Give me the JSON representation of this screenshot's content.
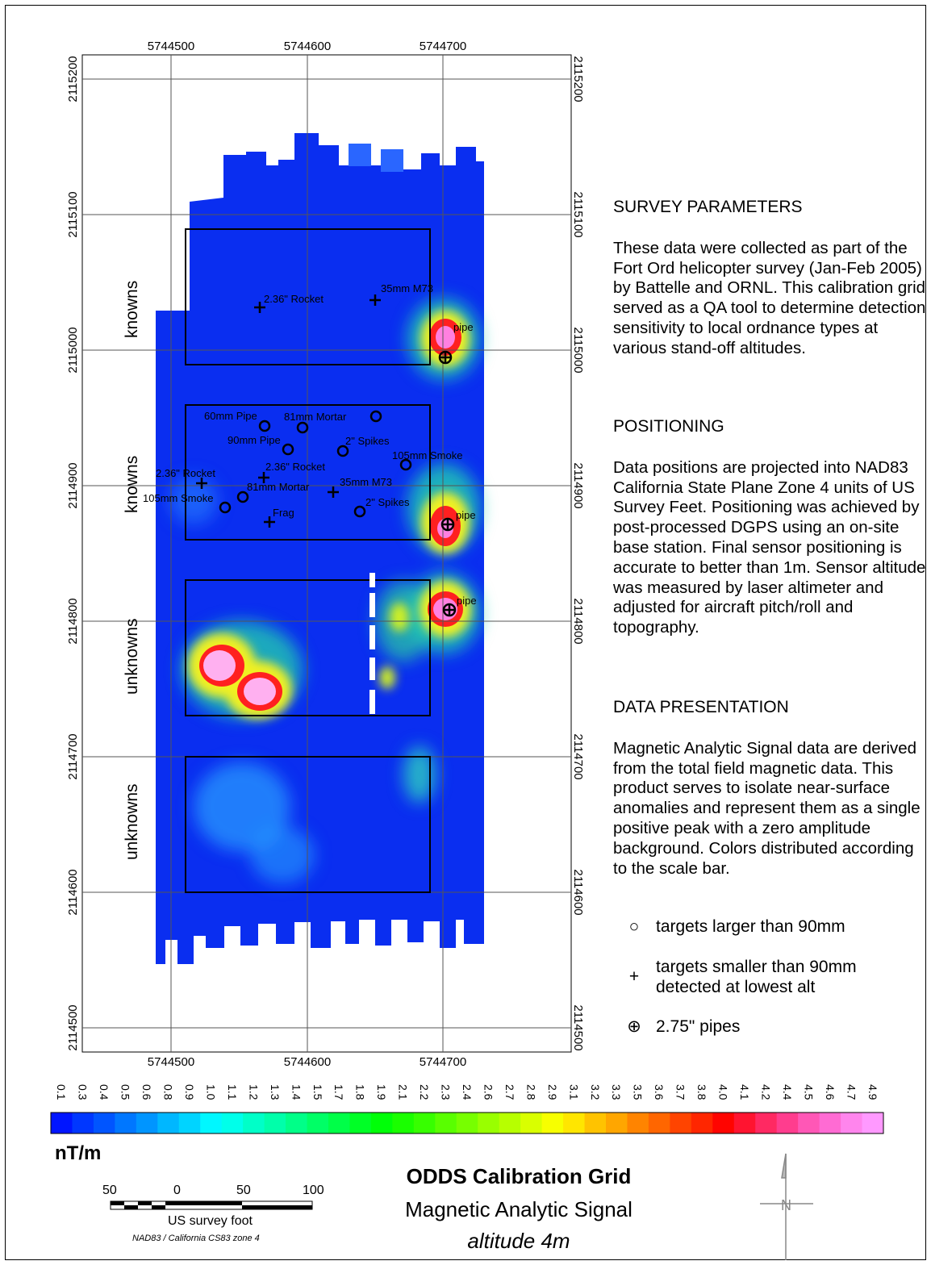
{
  "map": {
    "top_easting_ticks": [
      "5744500",
      "5744600",
      "5744700"
    ],
    "bottom_easting_ticks": [
      "5744500",
      "5744600",
      "5744700"
    ],
    "left_northing_ticks": [
      "2115200",
      "2115100",
      "2115000",
      "2114900",
      "2114800",
      "2114700",
      "2114600",
      "2114500"
    ],
    "right_northing_ticks": [
      "2115200",
      "2115100",
      "2115000",
      "2114900",
      "2114800",
      "2114700",
      "2114600",
      "2114500"
    ],
    "grid_labels": [
      "knowns",
      "knowns",
      "unknowns",
      "unknowns"
    ],
    "target_labels": [
      "2.36\" Rocket",
      "35mm M73",
      "pipe",
      "60mm Pipe",
      "81mm Mortar",
      "90mm Pipe",
      "2\" Spikes",
      "105mm Smoke",
      "2.36\" Rocket",
      "2.36\" Rocket",
      "81mm Mortar",
      "35mm M73",
      "105mm Smoke",
      "2\" Spikes",
      "Frag",
      "pipe",
      "pipe"
    ]
  },
  "panel": {
    "survey_heading": "SURVEY PARAMETERS",
    "survey_text": "These data were collected as part of the Fort Ord helicopter survey (Jan-Feb 2005) by Battelle and ORNL. This calibration grid served as a QA tool to determine detection sensitivity to local ordnance types at various stand-off altitudes.",
    "positioning_heading": "POSITIONING",
    "positioning_text": "Data positions are projected into NAD83 California State Plane Zone 4 units of US Survey Feet.  Positioning was achieved by post-processed DGPS using an on-site base station.  Final sensor positioning is accurate to better than 1m.  Sensor altitude was measured by laser altimeter and adjusted for aircraft pitch/roll and topography.",
    "presentation_heading": "DATA PRESENTATION",
    "presentation_text": "Magnetic Analytic Signal data are derived from the total field magnetic data.  This product serves to isolate near-surface anomalies and represent them as a single positive peak with a zero amplitude background.  Colors distributed according to the scale bar."
  },
  "legend": {
    "large_symbol": "○",
    "large_text": "targets larger than 90mm",
    "small_symbol": "+",
    "small_text_line1": "targets smaller than 90mm",
    "small_text_line2": "detected at lowest alt",
    "pipe_symbol": "⊕",
    "pipe_text": "2.75\" pipes"
  },
  "colorbar": {
    "labels": [
      "0.1",
      "0.3",
      "0.4",
      "0.5",
      "0.6",
      "0.8",
      "0.9",
      "1.0",
      "1.1",
      "1.2",
      "1.3",
      "1.4",
      "1.5",
      "1.7",
      "1.8",
      "1.9",
      "2.1",
      "2.2",
      "2.3",
      "2.4",
      "2.6",
      "2.7",
      "2.8",
      "2.9",
      "3.1",
      "3.2",
      "3.3",
      "3.5",
      "3.6",
      "3.7",
      "3.8",
      "4.0",
      "4.1",
      "4.2",
      "4.4",
      "4.5",
      "4.6",
      "4.7",
      "4.9"
    ],
    "unit": "nT/m"
  },
  "scalebar": {
    "labels": [
      "50",
      "0",
      "50",
      "100"
    ],
    "unit": "US survey foot",
    "projection": "NAD83 / California CS83 zone 4"
  },
  "title": {
    "line1": "ODDS Calibration Grid",
    "line2": "Magnetic Analytic Signal",
    "line3": "altitude 4m"
  },
  "north_arrow": {
    "label": "N"
  }
}
